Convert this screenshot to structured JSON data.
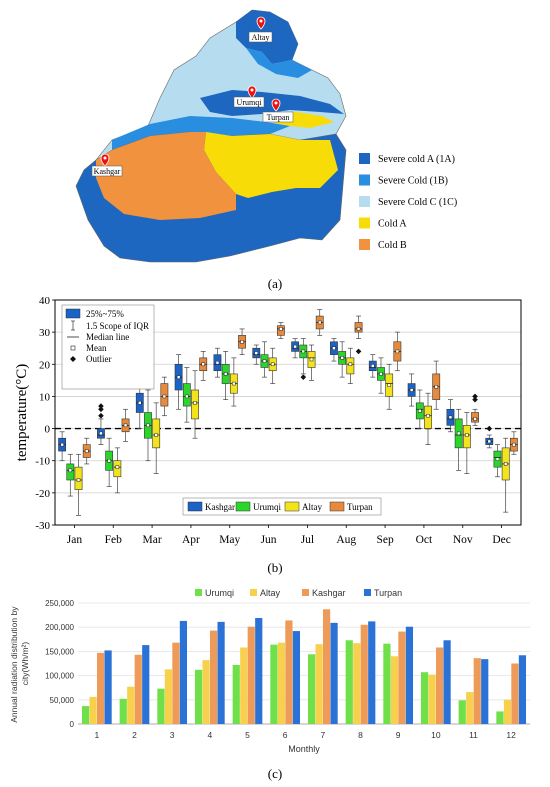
{
  "panel_a": {
    "label": "(a)",
    "cities": [
      "Altay",
      "Urumqi",
      "Turpan",
      "Kashgar"
    ],
    "legend": [
      {
        "label": "Severe cold A (1A)",
        "color": "#1d67c0"
      },
      {
        "label": "Severe Cold  (1B)",
        "color": "#2a8ee0"
      },
      {
        "label": "Severe Cold C (1C)",
        "color": "#b6dcf0"
      },
      {
        "label": "Cold A",
        "color": "#f8dc08"
      },
      {
        "label": "Cold B",
        "color": "#f0923e"
      }
    ]
  },
  "panel_b": {
    "label": "(b)",
    "legend_items": [
      "25%~75%",
      "1.5 Scope of IQR",
      "Median line",
      "Mean",
      "Outlier"
    ],
    "series_legend": [
      "Kashgar",
      "Urumqi",
      "Altay",
      "Turpan"
    ]
  },
  "panel_c": {
    "label": "(c)"
  },
  "colors": {
    "kashgar": "#1b63c6",
    "urumqi": "#2ad62a",
    "altay": "#f2e31a",
    "turpan": "#e88a3c",
    "bar_urumqi": "#6fe04a",
    "bar_altay": "#f7d14d",
    "bar_kashgar": "#ee9a58",
    "bar_turpan": "#2a72d6"
  },
  "chart_data": [
    {
      "type": "box",
      "ylabel": "temperature(°C)",
      "ylim": [
        -30,
        40
      ],
      "yticks": [
        -30,
        -20,
        -10,
        0,
        10,
        20,
        30,
        40
      ],
      "categories": [
        "Jan",
        "Feb",
        "Mar",
        "Apr",
        "May",
        "Jun",
        "Jul",
        "Aug",
        "Sep",
        "Oct",
        "Nov",
        "Dec"
      ],
      "grid": true,
      "legend": "top-left",
      "series": [
        {
          "name": "Kashgar",
          "boxes": [
            {
              "min": -10,
              "q1": -7,
              "median": -5,
              "q3": -3,
              "max": -1,
              "mean": -5
            },
            {
              "min": -5,
              "q1": -3,
              "median": -2,
              "q3": 0,
              "max": 3,
              "mean": -1.5,
              "outliers": [
                4,
                6,
                7
              ]
            },
            {
              "min": 0,
              "q1": 5,
              "median": 8,
              "q3": 11,
              "max": 14,
              "mean": 8
            },
            {
              "min": 6,
              "q1": 12,
              "median": 16,
              "q3": 20,
              "max": 23,
              "mean": 16
            },
            {
              "min": 16,
              "q1": 18,
              "median": 20,
              "q3": 23,
              "max": 25,
              "mean": 20.5
            },
            {
              "min": 20,
              "q1": 22,
              "median": 23,
              "q3": 25,
              "max": 26,
              "mean": 23.5
            },
            {
              "min": 22,
              "q1": 24,
              "median": 25,
              "q3": 27,
              "max": 28,
              "mean": 25.5
            },
            {
              "min": 21,
              "q1": 23,
              "median": 25,
              "q3": 27,
              "max": 28,
              "mean": 25
            },
            {
              "min": 16,
              "q1": 18,
              "median": 19,
              "q3": 21,
              "max": 23,
              "mean": 19.5
            },
            {
              "min": 7,
              "q1": 10,
              "median": 12,
              "q3": 14,
              "max": 17,
              "mean": 12
            },
            {
              "min": -1,
              "q1": 1,
              "median": 3,
              "q3": 6,
              "max": 9,
              "mean": 3.5
            },
            {
              "min": -6,
              "q1": -5,
              "median": -4,
              "q3": -3,
              "max": -2,
              "mean": -4,
              "outliers": [
                0
              ]
            }
          ]
        },
        {
          "name": "Urumqi",
          "boxes": [
            {
              "min": -21,
              "q1": -16,
              "median": -13,
              "q3": -11,
              "max": -8,
              "mean": -13
            },
            {
              "min": -18,
              "q1": -13,
              "median": -10,
              "q3": -7,
              "max": -3,
              "mean": -10
            },
            {
              "min": -10,
              "q1": -3,
              "median": 1,
              "q3": 5,
              "max": 12,
              "mean": 1
            },
            {
              "min": 2,
              "q1": 7,
              "median": 10,
              "q3": 14,
              "max": 19,
              "mean": 10
            },
            {
              "min": 9,
              "q1": 14,
              "median": 17,
              "q3": 20,
              "max": 24,
              "mean": 17
            },
            {
              "min": 16,
              "q1": 19,
              "median": 21,
              "q3": 23,
              "max": 27,
              "mean": 21
            },
            {
              "min": 17,
              "q1": 22,
              "median": 24,
              "q3": 26,
              "max": 28,
              "mean": 24,
              "outliers": [
                16
              ]
            },
            {
              "min": 16,
              "q1": 20,
              "median": 22,
              "q3": 24,
              "max": 27,
              "mean": 22
            },
            {
              "min": 11,
              "q1": 15,
              "median": 17,
              "q3": 19,
              "max": 22,
              "mean": 17
            },
            {
              "min": 0,
              "q1": 3,
              "median": 6,
              "q3": 8,
              "max": 12,
              "mean": 5.5
            },
            {
              "min": -13,
              "q1": -6,
              "median": -2,
              "q3": 3,
              "max": 6,
              "mean": -1.5
            },
            {
              "min": -15,
              "q1": -12,
              "median": -9,
              "q3": -7,
              "max": -5,
              "mean": -9.5
            }
          ]
        },
        {
          "name": "Altay",
          "boxes": [
            {
              "min": -27,
              "q1": -19,
              "median": -16,
              "q3": -12,
              "max": -8,
              "mean": -16
            },
            {
              "min": -20,
              "q1": -15,
              "median": -12,
              "q3": -10,
              "max": -6,
              "mean": -12
            },
            {
              "min": -14,
              "q1": -6,
              "median": -2,
              "q3": 3,
              "max": 8,
              "mean": -2
            },
            {
              "min": -3,
              "q1": 3,
              "median": 8,
              "q3": 12,
              "max": 18,
              "mean": 8
            },
            {
              "min": 7,
              "q1": 11,
              "median": 14,
              "q3": 17,
              "max": 22,
              "mean": 14
            },
            {
              "min": 14,
              "q1": 18,
              "median": 20,
              "q3": 22,
              "max": 25,
              "mean": 20
            },
            {
              "min": 15,
              "q1": 19,
              "median": 22,
              "q3": 24,
              "max": 26,
              "mean": 21.5
            },
            {
              "min": 14,
              "q1": 17,
              "median": 20,
              "q3": 22,
              "max": 25,
              "mean": 20
            },
            {
              "min": 6,
              "q1": 10,
              "median": 14,
              "q3": 17,
              "max": 20,
              "mean": 13.5
            },
            {
              "min": -5,
              "q1": 0,
              "median": 4,
              "q3": 7,
              "max": 11,
              "mean": 4
            },
            {
              "min": -14,
              "q1": -6,
              "median": -2,
              "q3": 1,
              "max": 5,
              "mean": -2
            },
            {
              "min": -26,
              "q1": -16,
              "median": -11,
              "q3": -6,
              "max": -3,
              "mean": -11
            }
          ]
        },
        {
          "name": "Turpan",
          "boxes": [
            {
              "min": -11,
              "q1": -9,
              "median": -7,
              "q3": -5,
              "max": -3,
              "mean": -7
            },
            {
              "min": -4,
              "q1": -1,
              "median": 1,
              "q3": 3,
              "max": 6,
              "mean": 1
            },
            {
              "min": 4,
              "q1": 7,
              "median": 10,
              "q3": 14,
              "max": 16,
              "mean": 10
            },
            {
              "min": 15,
              "q1": 18,
              "median": 20,
              "q3": 22,
              "max": 24,
              "mean": 20
            },
            {
              "min": 23,
              "q1": 25,
              "median": 27,
              "q3": 29,
              "max": 31,
              "mean": 27
            },
            {
              "min": 28,
              "q1": 29,
              "median": 31,
              "q3": 32,
              "max": 33,
              "mean": 31
            },
            {
              "min": 29,
              "q1": 31,
              "median": 33,
              "q3": 35,
              "max": 37,
              "mean": 33
            },
            {
              "min": 28,
              "q1": 30,
              "median": 31,
              "q3": 33,
              "max": 35,
              "mean": 31,
              "outliers": [
                24
              ]
            },
            {
              "min": 18,
              "q1": 21,
              "median": 24,
              "q3": 27,
              "max": 30,
              "mean": 24
            },
            {
              "min": 6,
              "q1": 9,
              "median": 13,
              "q3": 17,
              "max": 21,
              "mean": 13
            },
            {
              "min": 1,
              "q1": 2,
              "median": 3,
              "q3": 5,
              "max": 6,
              "mean": 3,
              "outliers": [
                9,
                10
              ]
            },
            {
              "min": -8,
              "q1": -7,
              "median": -5,
              "q3": -3,
              "max": -1,
              "mean": -5
            }
          ]
        }
      ]
    },
    {
      "type": "bar",
      "ylabel": "Annual radiation distribution by city(Wh/m²)",
      "xlabel": "Monthly",
      "ylim": [
        0,
        250000
      ],
      "yticks": [
        "0",
        "50,000",
        "100,000",
        "150,000",
        "200,000",
        "250,000"
      ],
      "categories": [
        "1",
        "2",
        "3",
        "4",
        "5",
        "6",
        "7",
        "8",
        "9",
        "10",
        "11",
        "12"
      ],
      "legend": "top",
      "grid": true,
      "series": [
        {
          "name": "Urumqi",
          "values": [
            37000,
            52000,
            73000,
            112000,
            122000,
            164000,
            144000,
            173000,
            166000,
            107000,
            49000,
            26000
          ]
        },
        {
          "name": "Altay",
          "values": [
            56000,
            77000,
            113000,
            132000,
            158000,
            168000,
            165000,
            167000,
            140000,
            102000,
            66000,
            50000
          ]
        },
        {
          "name": "Kashgar",
          "values": [
            147000,
            143000,
            168000,
            193000,
            201000,
            214000,
            237000,
            205000,
            191000,
            158000,
            136000,
            125000
          ]
        },
        {
          "name": "Turpan",
          "values": [
            152000,
            163000,
            213000,
            211000,
            219000,
            192000,
            209000,
            212000,
            201000,
            173000,
            134000,
            142000
          ]
        }
      ]
    }
  ]
}
